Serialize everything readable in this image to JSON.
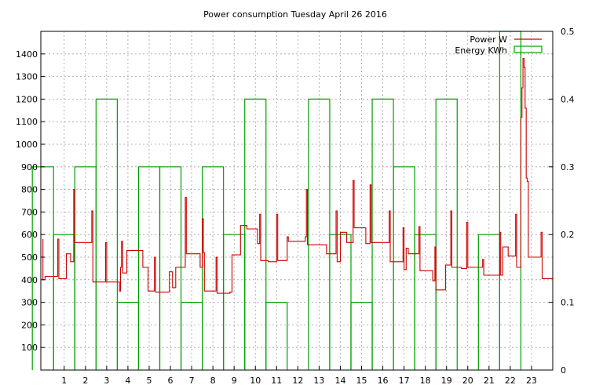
{
  "chart_data": {
    "type": "line",
    "title": "Power consumption Tuesday April 26 2016",
    "xlim": [
      -0.1,
      24
    ],
    "xticks": [
      1,
      2,
      3,
      4,
      5,
      6,
      7,
      8,
      9,
      10,
      11,
      12,
      13,
      14,
      15,
      16,
      17,
      18,
      19,
      20,
      21,
      22,
      23
    ],
    "y1lim": [
      0,
      1500
    ],
    "y1ticks": [
      100,
      200,
      300,
      400,
      500,
      600,
      700,
      800,
      900,
      1000,
      1100,
      1200,
      1300,
      1400
    ],
    "y2lim": [
      0,
      0.5
    ],
    "y2ticks": [
      0,
      0.1,
      0.2,
      0.3,
      0.4,
      0.5
    ],
    "grid": true,
    "legend_position": "top-right",
    "series": [
      {
        "name": "Power W",
        "type": "line",
        "axis": "left",
        "color": "#cc0000",
        "points": [
          [
            0.0,
            580
          ],
          [
            0.0,
            400
          ],
          [
            0.1,
            400
          ],
          [
            0.1,
            415
          ],
          [
            0.7,
            415
          ],
          [
            0.7,
            580
          ],
          [
            0.75,
            580
          ],
          [
            0.75,
            405
          ],
          [
            1.1,
            405
          ],
          [
            1.1,
            515
          ],
          [
            1.3,
            515
          ],
          [
            1.3,
            480
          ],
          [
            1.45,
            480
          ],
          [
            1.45,
            800
          ],
          [
            1.5,
            800
          ],
          [
            1.5,
            565
          ],
          [
            2.3,
            565
          ],
          [
            2.3,
            705
          ],
          [
            2.35,
            705
          ],
          [
            2.35,
            390
          ],
          [
            2.95,
            390
          ],
          [
            2.95,
            565
          ],
          [
            3.0,
            565
          ],
          [
            3.0,
            390
          ],
          [
            3.6,
            390
          ],
          [
            3.6,
            350
          ],
          [
            3.65,
            350
          ],
          [
            3.65,
            455
          ],
          [
            3.7,
            455
          ],
          [
            3.7,
            570
          ],
          [
            3.75,
            570
          ],
          [
            3.75,
            430
          ],
          [
            3.95,
            430
          ],
          [
            3.95,
            530
          ],
          [
            4.7,
            530
          ],
          [
            4.7,
            455
          ],
          [
            4.95,
            455
          ],
          [
            4.95,
            350
          ],
          [
            5.25,
            350
          ],
          [
            5.25,
            500
          ],
          [
            5.3,
            500
          ],
          [
            5.3,
            345
          ],
          [
            5.95,
            345
          ],
          [
            5.95,
            435
          ],
          [
            6.1,
            435
          ],
          [
            6.1,
            365
          ],
          [
            6.25,
            365
          ],
          [
            6.25,
            455
          ],
          [
            6.7,
            455
          ],
          [
            6.7,
            765
          ],
          [
            6.75,
            765
          ],
          [
            6.75,
            515
          ],
          [
            7.4,
            515
          ],
          [
            7.4,
            455
          ],
          [
            7.5,
            455
          ],
          [
            7.5,
            670
          ],
          [
            7.55,
            670
          ],
          [
            7.55,
            520
          ],
          [
            7.6,
            520
          ],
          [
            7.6,
            350
          ],
          [
            8.15,
            350
          ],
          [
            8.15,
            500
          ],
          [
            8.2,
            500
          ],
          [
            8.2,
            340
          ],
          [
            8.8,
            340
          ],
          [
            8.8,
            345
          ],
          [
            8.9,
            345
          ],
          [
            8.9,
            510
          ],
          [
            9.3,
            510
          ],
          [
            9.3,
            640
          ],
          [
            9.6,
            640
          ],
          [
            9.6,
            625
          ],
          [
            10.1,
            625
          ],
          [
            10.1,
            560
          ],
          [
            10.2,
            560
          ],
          [
            10.2,
            690
          ],
          [
            10.25,
            690
          ],
          [
            10.25,
            485
          ],
          [
            10.6,
            485
          ],
          [
            10.6,
            480
          ],
          [
            11.0,
            480
          ],
          [
            11.0,
            690
          ],
          [
            11.05,
            690
          ],
          [
            11.05,
            485
          ],
          [
            11.5,
            485
          ],
          [
            11.5,
            590
          ],
          [
            11.55,
            590
          ],
          [
            11.55,
            570
          ],
          [
            12.35,
            570
          ],
          [
            12.35,
            590
          ],
          [
            12.4,
            590
          ],
          [
            12.4,
            800
          ],
          [
            12.45,
            800
          ],
          [
            12.45,
            555
          ],
          [
            13.35,
            555
          ],
          [
            13.35,
            515
          ],
          [
            13.8,
            515
          ],
          [
            13.8,
            705
          ],
          [
            13.85,
            705
          ],
          [
            13.85,
            480
          ],
          [
            14.0,
            480
          ],
          [
            14.0,
            610
          ],
          [
            14.3,
            610
          ],
          [
            14.3,
            565
          ],
          [
            14.6,
            565
          ],
          [
            14.6,
            840
          ],
          [
            14.65,
            840
          ],
          [
            14.65,
            630
          ],
          [
            15.2,
            630
          ],
          [
            15.2,
            560
          ],
          [
            15.4,
            560
          ],
          [
            15.4,
            820
          ],
          [
            15.45,
            820
          ],
          [
            15.45,
            565
          ],
          [
            16.3,
            565
          ],
          [
            16.3,
            705
          ],
          [
            16.35,
            705
          ],
          [
            16.35,
            480
          ],
          [
            16.95,
            480
          ],
          [
            16.95,
            630
          ],
          [
            17.0,
            630
          ],
          [
            17.0,
            445
          ],
          [
            17.1,
            445
          ],
          [
            17.1,
            540
          ],
          [
            17.2,
            540
          ],
          [
            17.2,
            515
          ],
          [
            17.7,
            515
          ],
          [
            17.7,
            635
          ],
          [
            17.75,
            635
          ],
          [
            17.75,
            440
          ],
          [
            18.35,
            440
          ],
          [
            18.35,
            395
          ],
          [
            18.45,
            395
          ],
          [
            18.45,
            545
          ],
          [
            18.5,
            545
          ],
          [
            18.5,
            355
          ],
          [
            18.95,
            355
          ],
          [
            18.95,
            465
          ],
          [
            19.2,
            465
          ],
          [
            19.2,
            705
          ],
          [
            19.25,
            705
          ],
          [
            19.25,
            455
          ],
          [
            19.7,
            455
          ],
          [
            19.7,
            450
          ],
          [
            19.95,
            450
          ],
          [
            19.95,
            655
          ],
          [
            20.0,
            655
          ],
          [
            20.0,
            455
          ],
          [
            20.7,
            455
          ],
          [
            20.7,
            490
          ],
          [
            20.75,
            490
          ],
          [
            20.75,
            420
          ],
          [
            21.5,
            420
          ],
          [
            21.5,
            610
          ],
          [
            21.55,
            610
          ],
          [
            21.55,
            420
          ],
          [
            21.65,
            420
          ],
          [
            21.65,
            545
          ],
          [
            21.9,
            545
          ],
          [
            21.9,
            505
          ],
          [
            22.25,
            505
          ],
          [
            22.25,
            690
          ],
          [
            22.3,
            690
          ],
          [
            22.3,
            455
          ],
          [
            22.5,
            455
          ],
          [
            22.5,
            1120
          ],
          [
            22.55,
            1120
          ],
          [
            22.55,
            1250
          ],
          [
            22.6,
            1250
          ],
          [
            22.6,
            1380
          ],
          [
            22.65,
            1380
          ],
          [
            22.65,
            1340
          ],
          [
            22.7,
            1340
          ],
          [
            22.7,
            1160
          ],
          [
            22.75,
            1160
          ],
          [
            22.75,
            850
          ],
          [
            22.8,
            850
          ],
          [
            22.8,
            835
          ],
          [
            22.85,
            835
          ],
          [
            22.85,
            500
          ],
          [
            23.45,
            500
          ],
          [
            23.45,
            610
          ],
          [
            23.5,
            610
          ],
          [
            23.5,
            405
          ],
          [
            24.0,
            405
          ]
        ]
      },
      {
        "name": "Energy KWh",
        "type": "step",
        "axis": "right",
        "color": "#00a000",
        "values": [
          0.3,
          0.2,
          0.3,
          0.4,
          0.1,
          0.3,
          0.3,
          0.1,
          0.3,
          0.2,
          0.4,
          0.1,
          0.0,
          0.4,
          0.2,
          0.1,
          0.4,
          0.3,
          0.2,
          0.4,
          0.0,
          0.2,
          0.5,
          0.0
        ]
      }
    ]
  }
}
